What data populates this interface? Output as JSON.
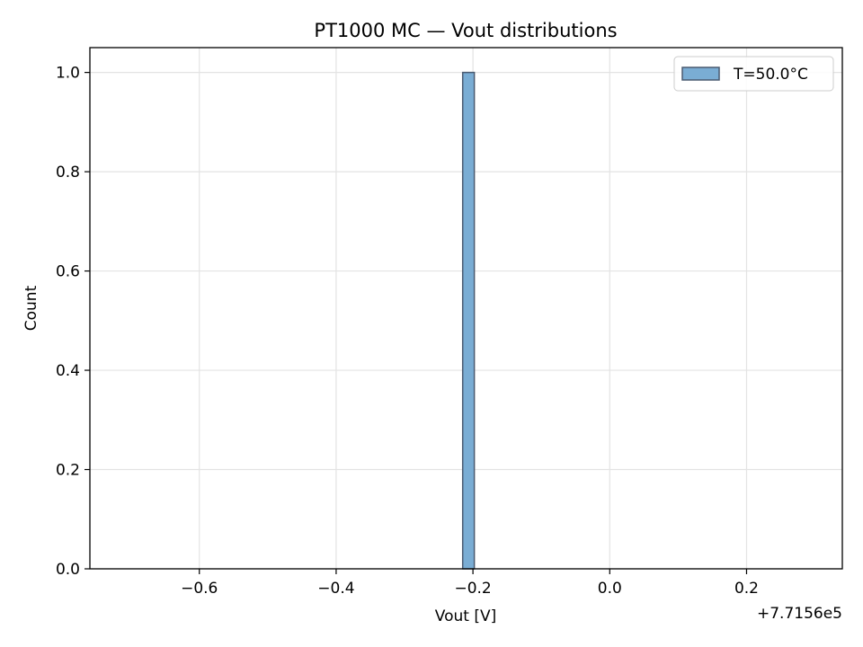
{
  "chart_data": {
    "type": "bar",
    "title": "PT1000 MC — Vout distributions",
    "xlabel": "Vout [V]",
    "ylabel": "Count",
    "x_offset_label": "+7.7156e5",
    "xlim": [
      -0.76,
      0.34
    ],
    "ylim": [
      0,
      1.05
    ],
    "x_ticks": [
      -0.6,
      -0.4,
      -0.2,
      0.0,
      0.2
    ],
    "x_tick_labels": [
      "−0.6",
      "−0.4",
      "−0.2",
      "0.0",
      "0.2"
    ],
    "y_ticks": [
      0.0,
      0.2,
      0.4,
      0.6,
      0.8,
      1.0
    ],
    "y_tick_labels": [
      "0.0",
      "0.2",
      "0.4",
      "0.6",
      "0.8",
      "1.0"
    ],
    "grid": true,
    "legend_position": "top-right",
    "series": [
      {
        "name": "T=50.0°C",
        "color": "#7aadd4",
        "edge_color": "#4a5a70",
        "bins": [
          {
            "x0": -0.215,
            "x1": -0.198,
            "count": 1
          }
        ]
      }
    ]
  }
}
